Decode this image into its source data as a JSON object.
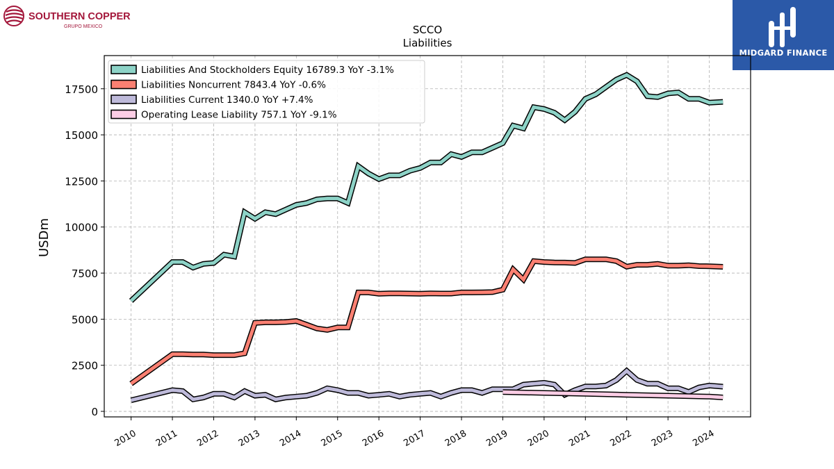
{
  "brand_left": {
    "name": "SOUTHERN COPPER",
    "subtitle": "GRUPO MEXICO",
    "color": "#a3163a"
  },
  "brand_right": {
    "name": "MIDGARD FINANCE",
    "bg_color": "#2b59a8"
  },
  "chart_data": {
    "type": "line",
    "title": "SCCO",
    "subtitle": "Liabilities",
    "xlabel": "",
    "ylabel": "USDm",
    "ylim": [
      -300,
      19300
    ],
    "xlim": [
      2009.35,
      2025.0
    ],
    "yticks": [
      0,
      2500,
      5000,
      7500,
      10000,
      12500,
      15000,
      17500
    ],
    "xticks": [
      "2010",
      "2011",
      "2012",
      "2013",
      "2014",
      "2015",
      "2016",
      "2017",
      "2018",
      "2019",
      "2020",
      "2021",
      "2022",
      "2023",
      "2024"
    ],
    "grid": true,
    "legend_position": "upper-left",
    "series": [
      {
        "name": "Liabilities And Stockholders Equity",
        "legend": "Liabilities And Stockholders Equity  16789.3 YoY -3.1%",
        "color": "#8dd3c7",
        "x": [
          2010.0,
          2011.0,
          2011.25,
          2011.5,
          2011.75,
          2012.0,
          2012.25,
          2012.5,
          2012.75,
          2013.0,
          2013.25,
          2013.5,
          2013.75,
          2014.0,
          2014.25,
          2014.5,
          2014.75,
          2015.0,
          2015.25,
          2015.5,
          2015.75,
          2016.0,
          2016.25,
          2016.5,
          2016.75,
          2017.0,
          2017.25,
          2017.5,
          2017.75,
          2018.0,
          2018.25,
          2018.5,
          2018.75,
          2019.0,
          2019.25,
          2019.5,
          2019.75,
          2020.0,
          2020.25,
          2020.5,
          2020.75,
          2021.0,
          2021.25,
          2021.5,
          2021.75,
          2022.0,
          2022.25,
          2022.5,
          2022.75,
          2023.0,
          2023.25,
          2023.5,
          2023.75,
          2024.0,
          2024.33
        ],
        "y": [
          6000,
          8100,
          8100,
          7800,
          8000,
          8050,
          8500,
          8400,
          10800,
          10450,
          10800,
          10700,
          10950,
          11200,
          11300,
          11500,
          11550,
          11550,
          11300,
          13300,
          12900,
          12600,
          12800,
          12800,
          13050,
          13200,
          13500,
          13500,
          13950,
          13800,
          14050,
          14050,
          14300,
          14550,
          15500,
          15350,
          16500,
          16400,
          16200,
          15800,
          16250,
          16950,
          17200,
          17600,
          18000,
          18250,
          17900,
          17100,
          17050,
          17250,
          17300,
          16950,
          16950,
          16750,
          16790
        ]
      },
      {
        "name": "Liabilities Noncurrent",
        "legend": "Liabilities Noncurrent  7843.4 YoY -0.6%",
        "color": "#fb8072",
        "x": [
          2010.0,
          2011.0,
          2011.25,
          2011.5,
          2011.75,
          2012.0,
          2012.25,
          2012.5,
          2012.75,
          2013.0,
          2013.25,
          2013.5,
          2013.75,
          2014.0,
          2014.25,
          2014.5,
          2014.75,
          2015.0,
          2015.25,
          2015.5,
          2015.75,
          2016.0,
          2016.25,
          2016.5,
          2016.75,
          2017.0,
          2017.25,
          2017.5,
          2017.75,
          2018.0,
          2018.25,
          2018.5,
          2018.75,
          2019.0,
          2019.25,
          2019.5,
          2019.75,
          2020.0,
          2020.25,
          2020.5,
          2020.75,
          2021.0,
          2021.25,
          2021.5,
          2021.75,
          2022.0,
          2022.25,
          2022.5,
          2022.75,
          2023.0,
          2023.25,
          2023.5,
          2023.75,
          2024.0,
          2024.33
        ],
        "y": [
          1500,
          3100,
          3100,
          3080,
          3080,
          3050,
          3050,
          3050,
          3150,
          4800,
          4830,
          4830,
          4850,
          4900,
          4700,
          4500,
          4420,
          4550,
          4550,
          6450,
          6450,
          6380,
          6400,
          6400,
          6390,
          6380,
          6400,
          6390,
          6390,
          6450,
          6450,
          6460,
          6470,
          6600,
          7700,
          7150,
          8150,
          8100,
          8080,
          8070,
          8050,
          8250,
          8250,
          8250,
          8150,
          7850,
          7950,
          7950,
          8000,
          7900,
          7900,
          7930,
          7880,
          7870,
          7843
        ]
      },
      {
        "name": "Liabilities Current",
        "legend": "Liabilities Current  1340.0 YoY +7.4%",
        "color": "#bebada",
        "x": [
          2010.0,
          2011.0,
          2011.25,
          2011.5,
          2011.75,
          2012.0,
          2012.25,
          2012.5,
          2012.75,
          2013.0,
          2013.25,
          2013.5,
          2013.75,
          2014.0,
          2014.25,
          2014.5,
          2014.75,
          2015.0,
          2015.25,
          2015.5,
          2015.75,
          2016.0,
          2016.25,
          2016.5,
          2016.75,
          2017.0,
          2017.25,
          2017.5,
          2017.75,
          2018.0,
          2018.25,
          2018.5,
          2018.75,
          2019.0,
          2019.25,
          2019.5,
          2019.75,
          2020.0,
          2020.25,
          2020.5,
          2020.75,
          2021.0,
          2021.25,
          2021.5,
          2021.75,
          2022.0,
          2022.25,
          2022.5,
          2022.75,
          2023.0,
          2023.25,
          2023.5,
          2023.75,
          2024.0,
          2024.33
        ],
        "y": [
          600,
          1150,
          1100,
          650,
          750,
          950,
          950,
          750,
          1100,
          850,
          900,
          650,
          750,
          800,
          850,
          1000,
          1250,
          1150,
          1000,
          1000,
          850,
          900,
          950,
          800,
          900,
          950,
          1000,
          800,
          1000,
          1150,
          1150,
          1000,
          1200,
          1200,
          1200,
          1450,
          1500,
          1550,
          1450,
          900,
          1150,
          1350,
          1350,
          1400,
          1700,
          2200,
          1700,
          1500,
          1500,
          1250,
          1250,
          1050,
          1300,
          1400,
          1340
        ]
      },
      {
        "name": "Operating Lease Liability",
        "legend": "Operating Lease Liability  757.1 YoY -9.1%",
        "color": "#fccde5",
        "x": [
          2019.0,
          2020.0,
          2021.0,
          2022.0,
          2023.0,
          2024.0,
          2024.33
        ],
        "y": [
          1050,
          1000,
          950,
          900,
          850,
          800,
          757
        ]
      }
    ]
  }
}
